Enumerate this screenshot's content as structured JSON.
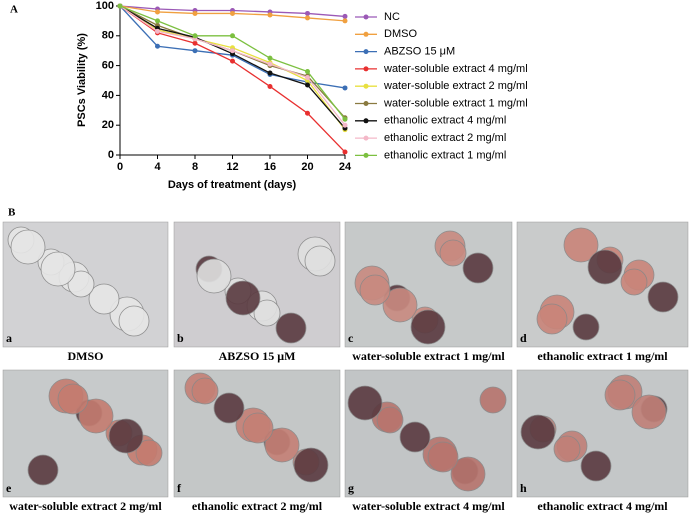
{
  "panel_a_label": "A",
  "panel_b_label": "B",
  "chart_data": {
    "type": "line",
    "xlabel": "Days of treatment (days)",
    "ylabel": "PSCs Viability (%)",
    "x": [
      0,
      4,
      8,
      12,
      16,
      20,
      24
    ],
    "xlim": [
      0,
      24
    ],
    "xticks": [
      0,
      4,
      8,
      12,
      16,
      20,
      24
    ],
    "ylim": [
      0,
      100
    ],
    "yticks": [
      0,
      20,
      40,
      60,
      80,
      100
    ],
    "legend": "right",
    "series": [
      {
        "name": "NC",
        "color": "#9b59b6",
        "values": [
          100,
          98,
          97,
          97,
          96,
          95,
          93
        ]
      },
      {
        "name": "DMSO",
        "color": "#f0a040",
        "values": [
          100,
          96,
          95,
          95,
          94,
          92,
          90
        ]
      },
      {
        "name": "ABZSO 15 μM",
        "color": "#3c6fb5",
        "values": [
          100,
          73,
          70,
          67,
          54,
          49,
          45
        ]
      },
      {
        "name": "water-soluble extract 4 mg/ml",
        "color": "#e83030",
        "values": [
          100,
          82,
          75,
          63,
          46,
          28,
          2
        ]
      },
      {
        "name": "water-soluble extract 2 mg/ml",
        "color": "#e8e040",
        "values": [
          100,
          84,
          78,
          72,
          62,
          50,
          17
        ]
      },
      {
        "name": "water-soluble extract 1 mg/ml",
        "color": "#8a7a40",
        "values": [
          100,
          87,
          78,
          70,
          60,
          53,
          25
        ]
      },
      {
        "name": "ethanolic extract 4 mg/ml",
        "color": "#111111",
        "values": [
          100,
          85,
          79,
          68,
          55,
          47,
          18
        ]
      },
      {
        "name": "ethanolic extract 2 mg/ml",
        "color": "#f4b8c8",
        "values": [
          100,
          83,
          78,
          70,
          61,
          52,
          20
        ]
      },
      {
        "name": "ethanolic extract 1 mg/ml",
        "color": "#7cc040",
        "values": [
          100,
          90,
          80,
          80,
          65,
          56,
          24
        ]
      }
    ]
  },
  "images": [
    {
      "letter": "a",
      "caption": "DMSO"
    },
    {
      "letter": "b",
      "caption": "ABZSO 15 μM"
    },
    {
      "letter": "c",
      "caption": "water-soluble extract 1 mg/ml"
    },
    {
      "letter": "d",
      "caption": "ethanolic extract 1 mg/ml"
    },
    {
      "letter": "e",
      "caption": "water-soluble extract 2 mg/ml"
    },
    {
      "letter": "f",
      "caption": "ethanolic extract 2 mg/ml"
    },
    {
      "letter": "g",
      "caption": "water-soluble extract 4 mg/ml"
    },
    {
      "letter": "h",
      "caption": "ethanolic extract 4 mg/ml"
    }
  ]
}
